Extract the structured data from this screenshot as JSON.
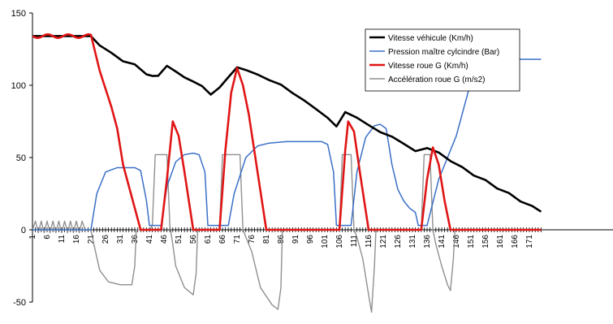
{
  "chart_data": {
    "type": "line",
    "title": "",
    "xlabel": "",
    "ylabel": "",
    "ylim": [
      -60,
      150
    ],
    "xlim": [
      1,
      175
    ],
    "y_ticks": [
      -50,
      0,
      50,
      100,
      150
    ],
    "x_ticks": [
      1,
      6,
      11,
      16,
      21,
      26,
      31,
      36,
      41,
      46,
      51,
      56,
      61,
      66,
      71,
      76,
      81,
      86,
      91,
      96,
      101,
      106,
      111,
      116,
      121,
      126,
      131,
      136,
      141,
      146,
      151,
      156,
      161,
      166,
      171
    ],
    "grid": false,
    "legend_position": "top-right",
    "series": [
      {
        "name": "Vitesse véhicule (Km/h)",
        "color": "#000000",
        "points": [
          [
            1,
            134
          ],
          [
            21,
            134
          ],
          [
            24,
            128
          ],
          [
            28,
            122
          ],
          [
            32,
            117
          ],
          [
            36,
            114
          ],
          [
            40,
            108
          ],
          [
            42,
            106
          ],
          [
            44,
            107
          ],
          [
            47,
            113
          ],
          [
            50,
            110
          ],
          [
            53,
            105
          ],
          [
            56,
            103
          ],
          [
            59,
            99
          ],
          [
            62,
            94
          ],
          [
            65,
            98
          ],
          [
            68,
            106
          ],
          [
            71,
            112
          ],
          [
            74,
            111
          ],
          [
            78,
            107
          ],
          [
            82,
            104
          ],
          [
            86,
            100
          ],
          [
            90,
            95
          ],
          [
            94,
            89
          ],
          [
            98,
            84
          ],
          [
            102,
            77
          ],
          [
            105,
            72
          ],
          [
            108,
            81
          ],
          [
            112,
            78
          ],
          [
            116,
            72
          ],
          [
            120,
            68
          ],
          [
            124,
            64
          ],
          [
            128,
            60
          ],
          [
            132,
            54
          ],
          [
            136,
            57
          ],
          [
            140,
            53
          ],
          [
            144,
            48
          ],
          [
            148,
            43
          ],
          [
            152,
            38
          ],
          [
            156,
            34
          ],
          [
            160,
            29
          ],
          [
            164,
            25
          ],
          [
            168,
            20
          ],
          [
            172,
            16
          ],
          [
            175,
            13
          ]
        ]
      },
      {
        "name": "Pression maître cylcindre (Bar)",
        "color": "#3a6fc7",
        "points": [
          [
            1,
            0
          ],
          [
            21,
            0
          ],
          [
            23,
            25
          ],
          [
            26,
            40
          ],
          [
            30,
            43
          ],
          [
            36,
            43
          ],
          [
            38,
            41
          ],
          [
            40,
            20
          ],
          [
            41,
            3
          ],
          [
            45,
            3
          ],
          [
            47,
            30
          ],
          [
            50,
            47
          ],
          [
            53,
            52
          ],
          [
            56,
            53
          ],
          [
            58,
            52
          ],
          [
            60,
            40
          ],
          [
            61,
            3
          ],
          [
            68,
            3
          ],
          [
            70,
            25
          ],
          [
            74,
            50
          ],
          [
            78,
            58
          ],
          [
            82,
            60
          ],
          [
            88,
            61
          ],
          [
            100,
            61
          ],
          [
            102,
            59
          ],
          [
            104,
            40
          ],
          [
            105,
            3
          ],
          [
            110,
            3
          ],
          [
            112,
            40
          ],
          [
            115,
            64
          ],
          [
            118,
            72
          ],
          [
            120,
            73
          ],
          [
            122,
            70
          ],
          [
            124,
            45
          ],
          [
            126,
            28
          ],
          [
            128,
            20
          ],
          [
            130,
            15
          ],
          [
            132,
            12
          ],
          [
            133,
            3
          ],
          [
            136,
            3
          ],
          [
            140,
            35
          ],
          [
            144,
            55
          ],
          [
            146,
            65
          ],
          [
            150,
            95
          ],
          [
            153,
            110
          ],
          [
            156,
            117
          ],
          [
            160,
            118
          ],
          [
            175,
            118
          ]
        ]
      },
      {
        "name": "Vitesse roue G (Km/h)",
        "color": "#e01515",
        "points": [
          [
            1,
            134
          ],
          [
            21,
            134
          ],
          [
            24,
            110
          ],
          [
            28,
            85
          ],
          [
            30,
            70
          ],
          [
            32,
            45
          ],
          [
            36,
            15
          ],
          [
            38,
            0
          ],
          [
            45,
            0
          ],
          [
            47,
            35
          ],
          [
            49,
            75
          ],
          [
            51,
            65
          ],
          [
            53,
            40
          ],
          [
            56,
            0
          ],
          [
            65,
            0
          ],
          [
            67,
            55
          ],
          [
            69,
            95
          ],
          [
            71,
            112
          ],
          [
            73,
            100
          ],
          [
            75,
            80
          ],
          [
            78,
            40
          ],
          [
            81,
            0
          ],
          [
            106,
            0
          ],
          [
            108,
            55
          ],
          [
            109,
            75
          ],
          [
            111,
            68
          ],
          [
            113,
            40
          ],
          [
            116,
            0
          ],
          [
            134,
            0
          ],
          [
            136,
            35
          ],
          [
            138,
            57
          ],
          [
            140,
            45
          ],
          [
            142,
            20
          ],
          [
            144,
            0
          ],
          [
            175,
            0
          ]
        ]
      },
      {
        "name": "Accélération roue G (m/s2)",
        "color": "#909090",
        "points": [
          [
            1,
            0
          ],
          [
            2,
            6
          ],
          [
            3,
            -2
          ],
          [
            4,
            6
          ],
          [
            5,
            -2
          ],
          [
            6,
            6
          ],
          [
            7,
            -2
          ],
          [
            8,
            6
          ],
          [
            9,
            -2
          ],
          [
            10,
            6
          ],
          [
            11,
            -2
          ],
          [
            12,
            6
          ],
          [
            13,
            -2
          ],
          [
            14,
            6
          ],
          [
            15,
            -2
          ],
          [
            16,
            6
          ],
          [
            17,
            -2
          ],
          [
            18,
            6
          ],
          [
            19,
            0
          ],
          [
            21,
            0
          ],
          [
            22,
            -10
          ],
          [
            24,
            -28
          ],
          [
            27,
            -36
          ],
          [
            31,
            -38
          ],
          [
            35,
            -38
          ],
          [
            36,
            -25
          ],
          [
            36.5,
            0
          ],
          [
            41,
            0
          ],
          [
            42,
            3
          ],
          [
            43,
            52
          ],
          [
            47,
            52
          ],
          [
            48,
            3
          ],
          [
            49,
            -10
          ],
          [
            50,
            -25
          ],
          [
            53,
            -40
          ],
          [
            56,
            -45
          ],
          [
            57,
            -30
          ],
          [
            57.5,
            0
          ],
          [
            65,
            0
          ],
          [
            66,
            52
          ],
          [
            72,
            52
          ],
          [
            73,
            0
          ],
          [
            76,
            -15
          ],
          [
            79,
            -40
          ],
          [
            83,
            -52
          ],
          [
            85,
            -55
          ],
          [
            86,
            -40
          ],
          [
            86.5,
            0
          ],
          [
            106,
            0
          ],
          [
            107,
            52
          ],
          [
            110,
            52
          ],
          [
            111,
            0
          ],
          [
            112,
            -5
          ],
          [
            114,
            -20
          ],
          [
            116,
            -45
          ],
          [
            117,
            -57
          ],
          [
            118,
            -25
          ],
          [
            118.5,
            0
          ],
          [
            134,
            0
          ],
          [
            135,
            52
          ],
          [
            137,
            52
          ],
          [
            138,
            0
          ],
          [
            139,
            -10
          ],
          [
            141,
            -25
          ],
          [
            143,
            -38
          ],
          [
            144,
            -42
          ],
          [
            145,
            -20
          ],
          [
            145.5,
            0
          ],
          [
            175,
            0
          ]
        ]
      }
    ]
  }
}
